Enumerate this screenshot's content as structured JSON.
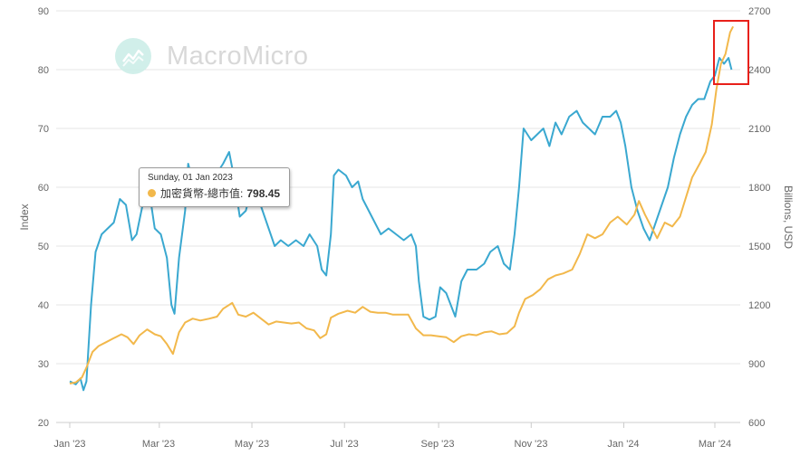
{
  "watermark": {
    "text": "MacroMicro",
    "icon": "macromicro-logo-icon"
  },
  "tooltip": {
    "date": "Sunday, 01 Jan 2023",
    "series_label": "加密貨幣-總市值:",
    "value": "798.45"
  },
  "colors": {
    "index_line": "#3aa8d0",
    "market_cap_line": "#f2b84b",
    "highlight_box": "#e8201a"
  },
  "chart_data": {
    "type": "line",
    "xlabel": "",
    "ylabel_left": "Index",
    "ylabel_right": "Billions, USD",
    "x_tick_labels": [
      "Jan '23",
      "Mar '23",
      "May '23",
      "Jul '23",
      "Sep '23",
      "Nov '23",
      "Jan '24",
      "Mar '24"
    ],
    "x_tick_dates": [
      "2023-01-01",
      "2023-03-01",
      "2023-05-01",
      "2023-07-01",
      "2023-09-01",
      "2023-11-01",
      "2024-01-01",
      "2024-03-01"
    ],
    "y_left_ticks": [
      "20",
      "30",
      "40",
      "50",
      "60",
      "70",
      "80",
      "90"
    ],
    "y_right_ticks": [
      "600",
      "900",
      "1200",
      "1500",
      "1800",
      "2100",
      "2400",
      "2700"
    ],
    "ylim_left": [
      20,
      90
    ],
    "ylim_right": [
      600,
      2700
    ],
    "grid": true,
    "series": [
      {
        "axis": "left",
        "color": "#3aa8d0",
        "points": [
          [
            "2023-01-01",
            27
          ],
          [
            "2023-01-05",
            26.5
          ],
          [
            "2023-01-08",
            27.5
          ],
          [
            "2023-01-10",
            25.5
          ],
          [
            "2023-01-12",
            27
          ],
          [
            "2023-01-15",
            40
          ],
          [
            "2023-01-18",
            49
          ],
          [
            "2023-01-22",
            52
          ],
          [
            "2023-01-26",
            53
          ],
          [
            "2023-01-30",
            54
          ],
          [
            "2023-02-03",
            58
          ],
          [
            "2023-02-07",
            57
          ],
          [
            "2023-02-11",
            51
          ],
          [
            "2023-02-14",
            52
          ],
          [
            "2023-02-18",
            57
          ],
          [
            "2023-02-22",
            60
          ],
          [
            "2023-02-26",
            53
          ],
          [
            "2023-03-02",
            52
          ],
          [
            "2023-03-06",
            48
          ],
          [
            "2023-03-09",
            40
          ],
          [
            "2023-03-11",
            38.5
          ],
          [
            "2023-03-14",
            48
          ],
          [
            "2023-03-18",
            56
          ],
          [
            "2023-03-20",
            64
          ],
          [
            "2023-03-24",
            60
          ],
          [
            "2023-03-28",
            62
          ],
          [
            "2023-04-02",
            59
          ],
          [
            "2023-04-07",
            62
          ],
          [
            "2023-04-12",
            64
          ],
          [
            "2023-04-16",
            66
          ],
          [
            "2023-04-19",
            62
          ],
          [
            "2023-04-23",
            55
          ],
          [
            "2023-04-27",
            56
          ],
          [
            "2023-05-01",
            60
          ],
          [
            "2023-05-04",
            59
          ],
          [
            "2023-05-08",
            56
          ],
          [
            "2023-05-12",
            53
          ],
          [
            "2023-05-16",
            50
          ],
          [
            "2023-05-20",
            51
          ],
          [
            "2023-05-25",
            50
          ],
          [
            "2023-05-30",
            51
          ],
          [
            "2023-06-04",
            50
          ],
          [
            "2023-06-08",
            52
          ],
          [
            "2023-06-13",
            50
          ],
          [
            "2023-06-16",
            46
          ],
          [
            "2023-06-19",
            45
          ],
          [
            "2023-06-22",
            52
          ],
          [
            "2023-06-24",
            62
          ],
          [
            "2023-06-27",
            63
          ],
          [
            "2023-07-02",
            62
          ],
          [
            "2023-07-06",
            60
          ],
          [
            "2023-07-10",
            61
          ],
          [
            "2023-07-13",
            58
          ],
          [
            "2023-07-17",
            56
          ],
          [
            "2023-07-21",
            54
          ],
          [
            "2023-07-25",
            52
          ],
          [
            "2023-07-30",
            53
          ],
          [
            "2023-08-04",
            52
          ],
          [
            "2023-08-09",
            51
          ],
          [
            "2023-08-14",
            52
          ],
          [
            "2023-08-17",
            50
          ],
          [
            "2023-08-19",
            44
          ],
          [
            "2023-08-22",
            38
          ],
          [
            "2023-08-26",
            37.5
          ],
          [
            "2023-08-30",
            38
          ],
          [
            "2023-09-02",
            43
          ],
          [
            "2023-09-06",
            42
          ],
          [
            "2023-09-09",
            40
          ],
          [
            "2023-09-12",
            38
          ],
          [
            "2023-09-16",
            44
          ],
          [
            "2023-09-20",
            46
          ],
          [
            "2023-09-26",
            46
          ],
          [
            "2023-10-01",
            47
          ],
          [
            "2023-10-05",
            49
          ],
          [
            "2023-10-10",
            50
          ],
          [
            "2023-10-14",
            47
          ],
          [
            "2023-10-18",
            46
          ],
          [
            "2023-10-21",
            52
          ],
          [
            "2023-10-24",
            60
          ],
          [
            "2023-10-27",
            70
          ],
          [
            "2023-11-01",
            68
          ],
          [
            "2023-11-05",
            69
          ],
          [
            "2023-11-09",
            70
          ],
          [
            "2023-11-13",
            67
          ],
          [
            "2023-11-17",
            71
          ],
          [
            "2023-11-21",
            69
          ],
          [
            "2023-11-26",
            72
          ],
          [
            "2023-12-01",
            73
          ],
          [
            "2023-12-05",
            71
          ],
          [
            "2023-12-09",
            70
          ],
          [
            "2023-12-13",
            69
          ],
          [
            "2023-12-18",
            72
          ],
          [
            "2023-12-23",
            72
          ],
          [
            "2023-12-27",
            73
          ],
          [
            "2023-12-30",
            71
          ],
          [
            "2024-01-02",
            67
          ],
          [
            "2024-01-06",
            60
          ],
          [
            "2024-01-10",
            56
          ],
          [
            "2024-01-14",
            53
          ],
          [
            "2024-01-18",
            51
          ],
          [
            "2024-01-22",
            54
          ],
          [
            "2024-01-26",
            57
          ],
          [
            "2024-01-30",
            60
          ],
          [
            "2024-02-03",
            65
          ],
          [
            "2024-02-07",
            69
          ],
          [
            "2024-02-11",
            72
          ],
          [
            "2024-02-15",
            74
          ],
          [
            "2024-02-19",
            75
          ],
          [
            "2024-02-23",
            75
          ],
          [
            "2024-02-27",
            78
          ],
          [
            "2024-03-01",
            79
          ],
          [
            "2024-03-04",
            82
          ],
          [
            "2024-03-07",
            81
          ],
          [
            "2024-03-10",
            82
          ],
          [
            "2024-03-12",
            80
          ]
        ]
      },
      {
        "axis": "right",
        "color": "#f2b84b",
        "points": [
          [
            "2023-01-01",
            798.45
          ],
          [
            "2023-01-05",
            805
          ],
          [
            "2023-01-09",
            830
          ],
          [
            "2023-01-12",
            880
          ],
          [
            "2023-01-16",
            960
          ],
          [
            "2023-01-20",
            990
          ],
          [
            "2023-01-25",
            1010
          ],
          [
            "2023-01-30",
            1030
          ],
          [
            "2023-02-04",
            1050
          ],
          [
            "2023-02-08",
            1035
          ],
          [
            "2023-02-12",
            1000
          ],
          [
            "2023-02-16",
            1045
          ],
          [
            "2023-02-21",
            1075
          ],
          [
            "2023-02-26",
            1050
          ],
          [
            "2023-03-02",
            1040
          ],
          [
            "2023-03-06",
            1000
          ],
          [
            "2023-03-10",
            950
          ],
          [
            "2023-03-14",
            1060
          ],
          [
            "2023-03-18",
            1110
          ],
          [
            "2023-03-23",
            1130
          ],
          [
            "2023-03-28",
            1120
          ],
          [
            "2023-04-03",
            1130
          ],
          [
            "2023-04-08",
            1140
          ],
          [
            "2023-04-12",
            1180
          ],
          [
            "2023-04-18",
            1210
          ],
          [
            "2023-04-22",
            1150
          ],
          [
            "2023-04-27",
            1140
          ],
          [
            "2023-05-02",
            1160
          ],
          [
            "2023-05-07",
            1130
          ],
          [
            "2023-05-12",
            1100
          ],
          [
            "2023-05-17",
            1115
          ],
          [
            "2023-05-22",
            1110
          ],
          [
            "2023-05-27",
            1105
          ],
          [
            "2023-06-01",
            1110
          ],
          [
            "2023-06-06",
            1080
          ],
          [
            "2023-06-11",
            1070
          ],
          [
            "2023-06-15",
            1030
          ],
          [
            "2023-06-19",
            1050
          ],
          [
            "2023-06-22",
            1135
          ],
          [
            "2023-06-27",
            1155
          ],
          [
            "2023-07-03",
            1170
          ],
          [
            "2023-07-08",
            1160
          ],
          [
            "2023-07-13",
            1190
          ],
          [
            "2023-07-18",
            1165
          ],
          [
            "2023-07-23",
            1160
          ],
          [
            "2023-07-28",
            1160
          ],
          [
            "2023-08-02",
            1150
          ],
          [
            "2023-08-07",
            1150
          ],
          [
            "2023-08-12",
            1150
          ],
          [
            "2023-08-17",
            1080
          ],
          [
            "2023-08-22",
            1045
          ],
          [
            "2023-08-27",
            1045
          ],
          [
            "2023-09-01",
            1040
          ],
          [
            "2023-09-06",
            1035
          ],
          [
            "2023-09-11",
            1010
          ],
          [
            "2023-09-16",
            1040
          ],
          [
            "2023-09-21",
            1050
          ],
          [
            "2023-09-26",
            1045
          ],
          [
            "2023-10-01",
            1060
          ],
          [
            "2023-10-06",
            1065
          ],
          [
            "2023-10-11",
            1050
          ],
          [
            "2023-10-16",
            1055
          ],
          [
            "2023-10-21",
            1090
          ],
          [
            "2023-10-24",
            1160
          ],
          [
            "2023-10-28",
            1230
          ],
          [
            "2023-11-02",
            1250
          ],
          [
            "2023-11-07",
            1280
          ],
          [
            "2023-11-12",
            1330
          ],
          [
            "2023-11-17",
            1350
          ],
          [
            "2023-11-22",
            1360
          ],
          [
            "2023-11-28",
            1380
          ],
          [
            "2023-12-03",
            1460
          ],
          [
            "2023-12-08",
            1560
          ],
          [
            "2023-12-13",
            1540
          ],
          [
            "2023-12-18",
            1560
          ],
          [
            "2023-12-23",
            1620
          ],
          [
            "2023-12-28",
            1650
          ],
          [
            "2024-01-03",
            1610
          ],
          [
            "2024-01-08",
            1660
          ],
          [
            "2024-01-11",
            1730
          ],
          [
            "2024-01-15",
            1660
          ],
          [
            "2024-01-19",
            1600
          ],
          [
            "2024-01-23",
            1540
          ],
          [
            "2024-01-28",
            1620
          ],
          [
            "2024-02-02",
            1600
          ],
          [
            "2024-02-07",
            1650
          ],
          [
            "2024-02-11",
            1750
          ],
          [
            "2024-02-15",
            1850
          ],
          [
            "2024-02-20",
            1920
          ],
          [
            "2024-02-24",
            1980
          ],
          [
            "2024-02-28",
            2120
          ],
          [
            "2024-03-02",
            2300
          ],
          [
            "2024-03-05",
            2430
          ],
          [
            "2024-03-08",
            2480
          ],
          [
            "2024-03-11",
            2590
          ],
          [
            "2024-03-13",
            2620
          ]
        ]
      }
    ]
  }
}
